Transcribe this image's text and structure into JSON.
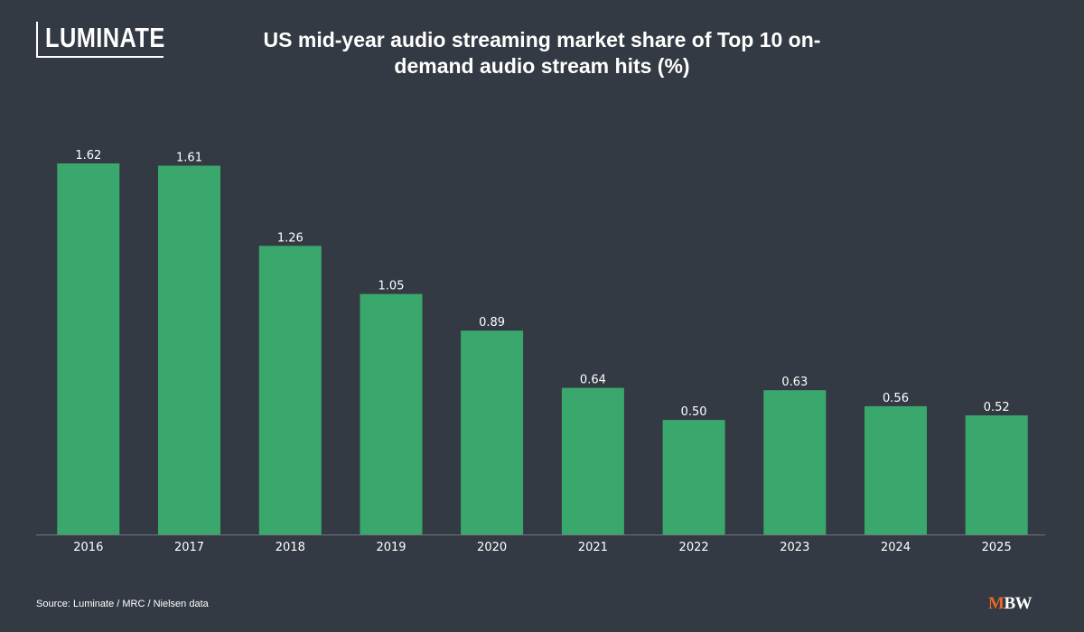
{
  "logo": {
    "text": "LUMINATE"
  },
  "chart_data": {
    "type": "bar",
    "title": "US mid-year audio streaming market share of Top 10 on-demand audio stream hits (%)",
    "categories": [
      "2016",
      "2017",
      "2018",
      "2019",
      "2020",
      "2021",
      "2022",
      "2023",
      "2024",
      "2025"
    ],
    "values": [
      1.62,
      1.61,
      1.26,
      1.05,
      0.89,
      0.64,
      0.5,
      0.63,
      0.56,
      0.52
    ],
    "value_labels": [
      "1.62",
      "1.61",
      "1.26",
      "1.05",
      "0.89",
      "0.64",
      "0.50",
      "0.63",
      "0.56",
      "0.52"
    ],
    "xlabel": "",
    "ylabel": "",
    "ylim": [
      0,
      1.62
    ],
    "grid": false,
    "legend": "none"
  },
  "footer": {
    "source": "Source: Luminate / MRC / Nielsen data",
    "brand_m": "M",
    "brand_bw": "BW"
  },
  "colors": {
    "background": "#343a43",
    "bar": "#3aa76d",
    "text": "#ffffff",
    "brand_accent": "#e8692a"
  }
}
